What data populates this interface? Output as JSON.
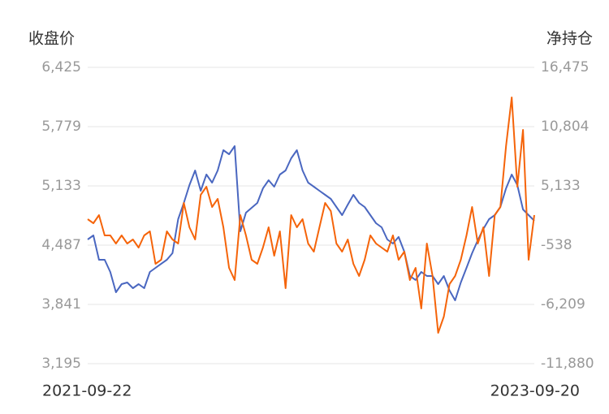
{
  "chart_data": {
    "type": "line",
    "y_label": "收盘价",
    "y2_label": "净持仓",
    "categories": [
      "2021-09-22",
      null,
      null,
      null,
      null,
      null,
      null,
      null,
      null,
      null,
      null,
      null,
      null,
      null,
      null,
      null,
      null,
      null,
      null,
      null,
      null,
      null,
      null,
      null,
      null,
      null,
      null,
      null,
      null,
      null,
      null,
      null,
      null,
      null,
      null,
      null,
      null,
      null,
      null,
      null,
      null,
      null,
      null,
      null,
      null,
      null,
      null,
      null,
      null,
      null,
      null,
      null,
      null,
      null,
      null,
      null,
      null,
      null,
      null,
      null,
      null,
      null,
      null,
      null,
      null,
      null,
      null,
      null,
      null,
      null,
      null,
      null,
      null,
      null,
      null,
      null,
      null,
      null,
      null,
      "2023-09-20"
    ],
    "series": [
      {
        "color": "#4a67c0",
        "axis": "y",
        "values": [
          4549,
          4593,
          4328,
          4328,
          4195,
          3974,
          4062,
          4080,
          4018,
          4062,
          4018,
          4195,
          4239,
          4284,
          4328,
          4399,
          4770,
          4947,
          5142,
          5301,
          5080,
          5257,
          5168,
          5301,
          5522,
          5478,
          5567,
          4638,
          4841,
          4894,
          4947,
          5106,
          5195,
          5124,
          5257,
          5301,
          5434,
          5522,
          5301,
          5168,
          5124,
          5080,
          5036,
          4991,
          4903,
          4814,
          4929,
          5036,
          4947,
          4903,
          4814,
          4726,
          4682,
          4549,
          4505,
          4576,
          4416,
          4151,
          4107,
          4195,
          4151,
          4151,
          4062,
          4151,
          3992,
          3885,
          4080,
          4239,
          4399,
          4540,
          4664,
          4770,
          4814,
          4903,
          5106,
          5257,
          5142,
          4876,
          4814,
          4753
        ]
      },
      {
        "color": "#f5640a",
        "axis": "y2",
        "values": [
          1949,
          1560,
          2337,
          395,
          395,
          -382,
          395,
          -382,
          7,
          -770,
          395,
          784,
          -2324,
          -1935,
          784,
          7,
          -382,
          3502,
          1172,
          7,
          4279,
          5056,
          3114,
          3891,
          1172,
          -2712,
          -3877,
          2337,
          395,
          -1935,
          -2324,
          -770,
          1172,
          -1547,
          784,
          -4654,
          2337,
          1172,
          1949,
          -382,
          -1158,
          1172,
          3502,
          2726,
          -382,
          -1158,
          7,
          -2324,
          -3489,
          -1935,
          395,
          -382,
          -770,
          -1158,
          395,
          -1935,
          -1158,
          -3877,
          -2712,
          -6596,
          -382,
          -3489,
          -8926,
          -7373,
          -4266,
          -3489,
          -1935,
          395,
          3114,
          -382,
          1172,
          -3489,
          2337,
          3114,
          8940,
          13601,
          5056,
          10494,
          -1935,
          2337
        ]
      }
    ],
    "ylim": [
      3195,
      6425
    ],
    "yticks": [
      {
        "value": 3195,
        "label": "3,195"
      },
      {
        "value": 3841,
        "label": "3,841"
      },
      {
        "value": 4487,
        "label": "4,487"
      },
      {
        "value": 5133,
        "label": "5,133"
      },
      {
        "value": 5779,
        "label": "5,779"
      },
      {
        "value": 6425,
        "label": "6,425"
      }
    ],
    "y2lim": [
      -11880,
      16475
    ],
    "y2ticks": [
      {
        "value": -11880,
        "label": "-11,880"
      },
      {
        "value": -6209,
        "label": "-6,209"
      },
      {
        "value": -538,
        "label": "-538"
      },
      {
        "value": 5133,
        "label": "5,133"
      },
      {
        "value": 10804,
        "label": "10,804"
      },
      {
        "value": 16475,
        "label": "16,475"
      }
    ],
    "grid": true
  }
}
